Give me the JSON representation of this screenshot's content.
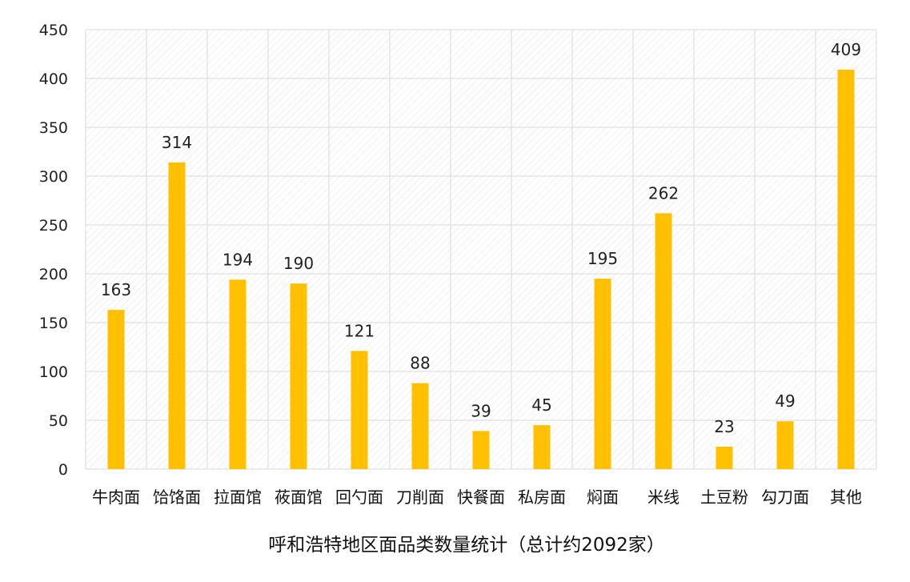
{
  "chart_data": {
    "type": "bar",
    "title": "呼和浩特地区面品类数量统计（总计约2092家）",
    "categories": [
      "牛肉面",
      "饸饹面",
      "拉面馆",
      "莜面馆",
      "回勺面",
      "刀削面",
      "快餐面",
      "私房面",
      "焖面",
      "米线",
      "土豆粉",
      "勾刀面",
      "其他"
    ],
    "values": [
      163,
      314,
      194,
      190,
      121,
      88,
      39,
      45,
      195,
      262,
      23,
      49,
      409
    ],
    "data_labels": [
      "163",
      "314",
      "194",
      "190",
      "121",
      "88",
      "39",
      "45",
      "195",
      "262",
      "23",
      "49",
      "409"
    ],
    "yticks": [
      "0",
      "50",
      "100",
      "150",
      "200",
      "250",
      "300",
      "350",
      "400",
      "450"
    ],
    "ylim": [
      0,
      450
    ],
    "xlabel": "",
    "ylabel": "",
    "grid": true,
    "bar_color": "#FFC000",
    "grid_color": "#d9d9d9"
  }
}
